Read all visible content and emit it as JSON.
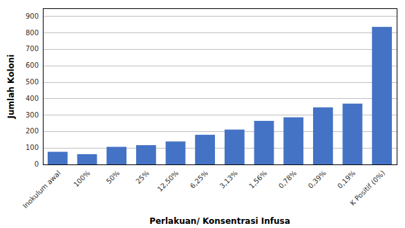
{
  "chart_data": {
    "type": "bar",
    "categories": [
      "Inokulum awal",
      "100%",
      "50%",
      "25%",
      "12,50%",
      "6,25%",
      "3,13%",
      "1,56%",
      "0,78%",
      "0,39%",
      "0,19%",
      "K Positif (0%)"
    ],
    "values": [
      75,
      60,
      105,
      115,
      138,
      178,
      210,
      263,
      285,
      345,
      368,
      835
    ],
    "color": "#4472C4",
    "xlabel": "Perlakuan/ Konsentrasi Infusa",
    "ylabel": "Jumlah Koloni",
    "ylim": [
      0,
      950
    ],
    "yticks": [
      0,
      100,
      200,
      300,
      400,
      500,
      600,
      700,
      800,
      900
    ],
    "grid": true
  }
}
